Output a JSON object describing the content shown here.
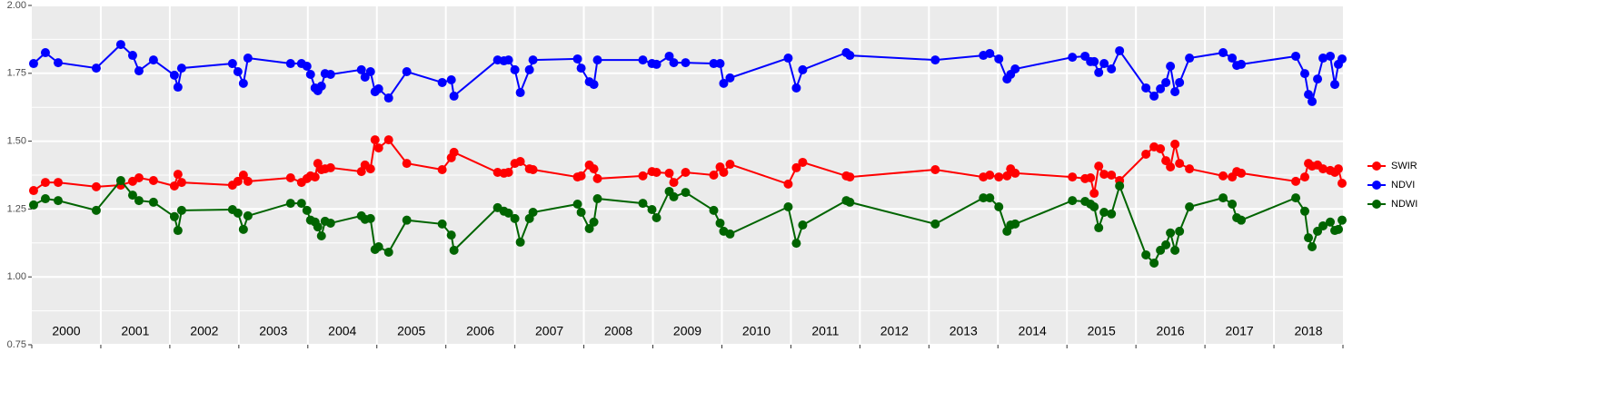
{
  "chart_data": {
    "type": "line",
    "x": [
      2000.026,
      2000.197,
      2000.382,
      2000.934,
      2001.289,
      2001.461,
      2001.553,
      2001.763,
      2002.066,
      2002.118,
      2002.171,
      2002.908,
      2002.987,
      2003.066,
      2003.132,
      2003.75,
      2003.908,
      2003.987,
      2004.039,
      2004.105,
      2004.145,
      2004.197,
      2004.25,
      2004.329,
      2004.776,
      2004.829,
      2004.908,
      2004.974,
      2005.026,
      2005.171,
      2005.434,
      2005.947,
      2006.079,
      2006.118,
      2006.75,
      2006.842,
      2006.908,
      2007.0,
      2007.079,
      2007.211,
      2007.263,
      2007.908,
      2007.961,
      2008.079,
      2008.145,
      2008.197,
      2008.855,
      2008.987,
      2009.053,
      2009.237,
      2009.303,
      2009.474,
      2009.882,
      2009.974,
      2010.026,
      2010.118,
      2010.961,
      2011.079,
      2011.171,
      2011.803,
      2011.855,
      2013.092,
      2013.789,
      2013.882,
      2014.013,
      2014.132,
      2014.184,
      2014.25,
      2015.079,
      2015.263,
      2015.342,
      2015.395,
      2015.461,
      2015.539,
      2015.645,
      2015.763,
      2016.145,
      2016.263,
      2016.355,
      2016.434,
      2016.5,
      2016.566,
      2016.632,
      2016.776,
      2017.263,
      2017.395,
      2017.461,
      2017.526,
      2018.316,
      2018.447,
      2018.5,
      2018.553,
      2018.632,
      2018.711,
      2018.816,
      2018.882,
      2018.934,
      2018.987
    ],
    "series": [
      {
        "name": "SWIR",
        "color": "#ff0000",
        "values": [
          1.318,
          1.348,
          1.348,
          1.332,
          1.338,
          1.352,
          1.365,
          1.355,
          1.335,
          1.378,
          1.348,
          1.338,
          1.352,
          1.375,
          1.352,
          1.365,
          1.348,
          1.362,
          1.372,
          1.368,
          1.418,
          1.395,
          1.398,
          1.402,
          1.388,
          1.412,
          1.398,
          1.505,
          1.475,
          1.505,
          1.418,
          1.395,
          1.439,
          1.459,
          1.385,
          1.382,
          1.385,
          1.418,
          1.425,
          1.398,
          1.395,
          1.368,
          1.372,
          1.412,
          1.398,
          1.362,
          1.372,
          1.388,
          1.385,
          1.382,
          1.348,
          1.385,
          1.375,
          1.405,
          1.385,
          1.415,
          1.342,
          1.402,
          1.422,
          1.372,
          1.368,
          1.395,
          1.368,
          1.375,
          1.368,
          1.372,
          1.398,
          1.382,
          1.368,
          1.362,
          1.365,
          1.308,
          1.408,
          1.378,
          1.375,
          1.355,
          1.452,
          1.479,
          1.472,
          1.428,
          1.405,
          1.489,
          1.418,
          1.398,
          1.372,
          1.368,
          1.388,
          1.382,
          1.352,
          1.368,
          1.418,
          1.408,
          1.412,
          1.398,
          1.392,
          1.385,
          1.398,
          1.345
        ]
      },
      {
        "name": "NDVI",
        "color": "#0000ff",
        "values": [
          1.786,
          1.826,
          1.789,
          1.769,
          1.856,
          1.816,
          1.759,
          1.799,
          1.743,
          1.699,
          1.769,
          1.786,
          1.756,
          1.713,
          1.806,
          1.786,
          1.786,
          1.776,
          1.746,
          1.696,
          1.686,
          1.703,
          1.749,
          1.746,
          1.763,
          1.736,
          1.756,
          1.682,
          1.693,
          1.659,
          1.756,
          1.716,
          1.726,
          1.666,
          1.799,
          1.796,
          1.799,
          1.763,
          1.679,
          1.763,
          1.799,
          1.803,
          1.769,
          1.719,
          1.709,
          1.799,
          1.799,
          1.786,
          1.783,
          1.813,
          1.789,
          1.789,
          1.786,
          1.786,
          1.713,
          1.733,
          1.806,
          1.696,
          1.763,
          1.826,
          1.816,
          1.799,
          1.816,
          1.823,
          1.803,
          1.729,
          1.746,
          1.766,
          1.809,
          1.813,
          1.793,
          1.793,
          1.753,
          1.786,
          1.766,
          1.833,
          1.696,
          1.666,
          1.693,
          1.716,
          1.776,
          1.682,
          1.716,
          1.806,
          1.826,
          1.806,
          1.779,
          1.783,
          1.813,
          1.749,
          1.672,
          1.646,
          1.729,
          1.806,
          1.813,
          1.709,
          1.783,
          1.803
        ]
      },
      {
        "name": "NDWI",
        "color": "#006400",
        "values": [
          1.265,
          1.288,
          1.281,
          1.245,
          1.355,
          1.301,
          1.281,
          1.275,
          1.222,
          1.171,
          1.245,
          1.248,
          1.235,
          1.175,
          1.225,
          1.271,
          1.271,
          1.245,
          1.209,
          1.202,
          1.184,
          1.151,
          1.205,
          1.198,
          1.225,
          1.212,
          1.215,
          1.101,
          1.111,
          1.091,
          1.209,
          1.195,
          1.154,
          1.098,
          1.255,
          1.242,
          1.235,
          1.215,
          1.128,
          1.215,
          1.238,
          1.268,
          1.238,
          1.178,
          1.202,
          1.288,
          1.271,
          1.248,
          1.218,
          1.315,
          1.295,
          1.311,
          1.245,
          1.198,
          1.168,
          1.158,
          1.258,
          1.124,
          1.191,
          1.281,
          1.275,
          1.195,
          1.291,
          1.291,
          1.258,
          1.168,
          1.191,
          1.195,
          1.281,
          1.278,
          1.268,
          1.258,
          1.181,
          1.238,
          1.232,
          1.335,
          1.081,
          1.051,
          1.098,
          1.118,
          1.162,
          1.098,
          1.168,
          1.258,
          1.291,
          1.268,
          1.218,
          1.209,
          1.291,
          1.242,
          1.144,
          1.111,
          1.168,
          1.188,
          1.202,
          1.171,
          1.175,
          1.209
        ]
      }
    ],
    "xlim": [
      2000,
      2019
    ],
    "xticks": [
      {
        "value": 2000.5,
        "label": "2000"
      },
      {
        "value": 2001.5,
        "label": "2001"
      },
      {
        "value": 2002.5,
        "label": "2002"
      },
      {
        "value": 2003.5,
        "label": "2003"
      },
      {
        "value": 2004.5,
        "label": "2004"
      },
      {
        "value": 2005.5,
        "label": "2005"
      },
      {
        "value": 2006.5,
        "label": "2006"
      },
      {
        "value": 2007.5,
        "label": "2007"
      },
      {
        "value": 2008.5,
        "label": "2008"
      },
      {
        "value": 2009.5,
        "label": "2009"
      },
      {
        "value": 2010.5,
        "label": "2010"
      },
      {
        "value": 2011.5,
        "label": "2011"
      },
      {
        "value": 2012.5,
        "label": "2012"
      },
      {
        "value": 2013.5,
        "label": "2013"
      },
      {
        "value": 2014.5,
        "label": "2014"
      },
      {
        "value": 2015.5,
        "label": "2015"
      },
      {
        "value": 2016.5,
        "label": "2016"
      },
      {
        "value": 2017.5,
        "label": "2017"
      },
      {
        "value": 2018.5,
        "label": "2018"
      }
    ],
    "ylim": [
      0.75,
      2.0
    ],
    "yticks": [
      {
        "value": 0.75,
        "label": "0.75"
      },
      {
        "value": 1.0,
        "label": "1.00"
      },
      {
        "value": 1.25,
        "label": "1.25"
      },
      {
        "value": 1.5,
        "label": "1.50"
      },
      {
        "value": 1.75,
        "label": "1.75"
      },
      {
        "value": 2.0,
        "label": "2.00"
      }
    ],
    "grid": true,
    "legend": "right"
  }
}
